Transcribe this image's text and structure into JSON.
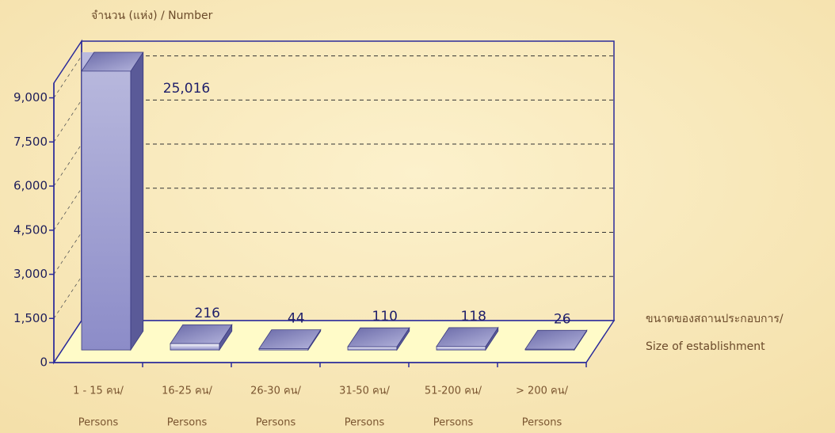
{
  "chart_data": {
    "type": "bar3d",
    "y_axis_label": "จำนวน (แห่ง) / Number",
    "x_axis_label": [
      "ขนาดของสถานประกอบการ/",
      "Size of establishment"
    ],
    "categories": [
      [
        "1 - 15 คน/",
        "Persons"
      ],
      [
        "16-25 คน/",
        "Persons"
      ],
      [
        "26-30 คน/",
        "Persons"
      ],
      [
        "31-50 คน/",
        "Persons"
      ],
      [
        "51-200 คน/",
        "Persons"
      ],
      [
        "> 200 คน/",
        "Persons"
      ]
    ],
    "values": [
      25016,
      216,
      44,
      110,
      118,
      26
    ],
    "value_labels": [
      "25,016",
      "216",
      "44",
      "110",
      "118",
      "26"
    ],
    "ylim": [
      0,
      9500
    ],
    "yticks": [
      0,
      {
        "value": 1500,
        "label": "1,500"
      },
      {
        "value": 3000,
        "label": "3,000"
      },
      {
        "value": 4500,
        "label": "4,500"
      },
      {
        "value": 6000,
        "label": "6,000"
      },
      {
        "value": 7500,
        "label": "7,500"
      },
      {
        "value": 9000,
        "label": "9,000"
      }
    ],
    "grid": true
  }
}
